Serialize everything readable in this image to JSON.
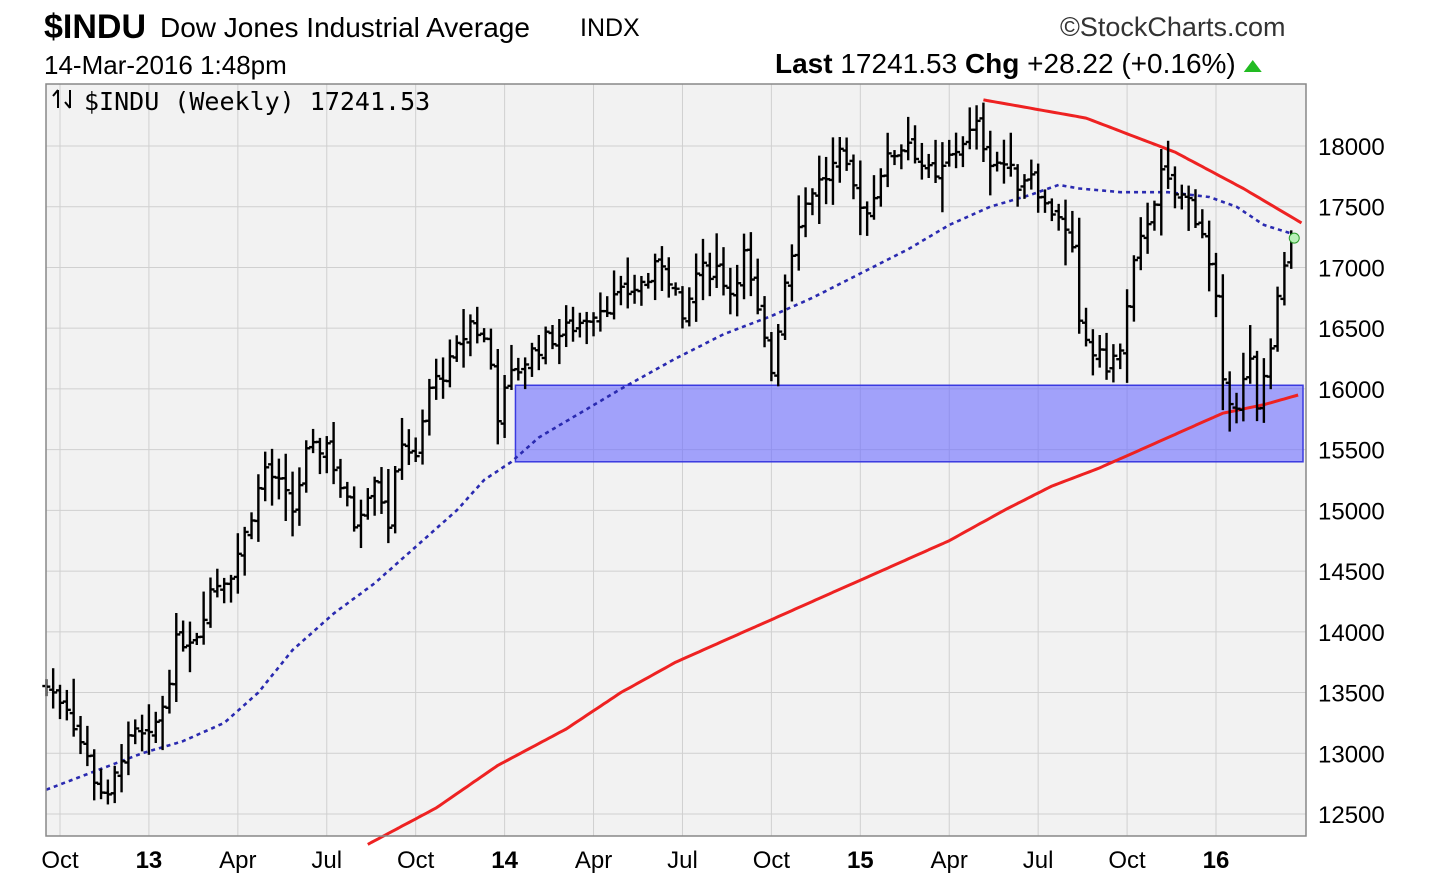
{
  "header": {
    "symbol": "$INDU",
    "name": "Dow Jones Industrial Average",
    "exchange": "INDX",
    "brand": "©StockCharts.com",
    "datetime": "14-Mar-2016 1:48pm",
    "last_label": "Last",
    "last_value": "17241.53",
    "chg_label": "Chg",
    "chg_value": "+28.22 (+0.16%)"
  },
  "panel_title": "$INDU (Weekly) 17241.53",
  "colors": {
    "bars": "#000000",
    "ma_short": "#2a2ab0",
    "ma_long": "#ee2222",
    "trendline": "#ee2222",
    "support_zone": "#6b6bff",
    "up_arrow": "#22bb22",
    "plot_bg": "#f2f2f2",
    "grid": "#d0d0d0"
  },
  "chart_data": {
    "type": "ohlc",
    "title": "$INDU (Weekly) 17241.53",
    "ylim": [
      12300,
      18450
    ],
    "y_ticks": [
      12500,
      13000,
      13500,
      14000,
      14500,
      15000,
      15500,
      16000,
      16500,
      17000,
      17500,
      18000
    ],
    "x_ticks": [
      {
        "label": "Oct",
        "pos": 0,
        "bold": false
      },
      {
        "label": "13",
        "pos": 13,
        "bold": true
      },
      {
        "label": "Apr",
        "pos": 26,
        "bold": false
      },
      {
        "label": "Jul",
        "pos": 39,
        "bold": false
      },
      {
        "label": "Oct",
        "pos": 52,
        "bold": false
      },
      {
        "label": "14",
        "pos": 65,
        "bold": true
      },
      {
        "label": "Apr",
        "pos": 78,
        "bold": false
      },
      {
        "label": "Jul",
        "pos": 91,
        "bold": false
      },
      {
        "label": "Oct",
        "pos": 104,
        "bold": false
      },
      {
        "label": "15",
        "pos": 117,
        "bold": true
      },
      {
        "label": "Apr",
        "pos": 130,
        "bold": false
      },
      {
        "label": "Jul",
        "pos": 143,
        "bold": false
      },
      {
        "label": "Oct",
        "pos": 156,
        "bold": false
      },
      {
        "label": "16",
        "pos": 169,
        "bold": true
      }
    ],
    "x_range": [
      -2,
      180
    ],
    "ohlc_anchors": [
      [
        -2,
        13550
      ],
      [
        1,
        13400
      ],
      [
        5,
        12800
      ],
      [
        7,
        12600
      ],
      [
        9,
        13000
      ],
      [
        11,
        13150
      ],
      [
        13,
        13100
      ],
      [
        15,
        13400
      ],
      [
        17,
        13900
      ],
      [
        20,
        14000
      ],
      [
        22,
        14350
      ],
      [
        25,
        14500
      ],
      [
        27,
        14800
      ],
      [
        30,
        15350
      ],
      [
        32,
        15200
      ],
      [
        34,
        15000
      ],
      [
        36,
        15450
      ],
      [
        39,
        15550
      ],
      [
        41,
        15200
      ],
      [
        43,
        14900
      ],
      [
        46,
        15300
      ],
      [
        48,
        14900
      ],
      [
        50,
        15600
      ],
      [
        52,
        15400
      ],
      [
        54,
        16000
      ],
      [
        57,
        16200
      ],
      [
        60,
        16550
      ],
      [
        62,
        16400
      ],
      [
        63,
        16200
      ],
      [
        64,
        15800
      ],
      [
        66,
        16100
      ],
      [
        69,
        16300
      ],
      [
        71,
        16400
      ],
      [
        73,
        16450
      ],
      [
        76,
        16550
      ],
      [
        78,
        16650
      ],
      [
        80,
        16700
      ],
      [
        83,
        16800
      ],
      [
        86,
        16900
      ],
      [
        88,
        17050
      ],
      [
        90,
        16800
      ],
      [
        91,
        16500
      ],
      [
        93,
        16950
      ],
      [
        96,
        17000
      ],
      [
        98,
        16800
      ],
      [
        100,
        17100
      ],
      [
        102,
        16600
      ],
      [
        104,
        16150
      ],
      [
        106,
        16900
      ],
      [
        108,
        17400
      ],
      [
        110,
        17650
      ],
      [
        112,
        17750
      ],
      [
        114,
        17900
      ],
      [
        116,
        17650
      ],
      [
        118,
        17450
      ],
      [
        120,
        17800
      ],
      [
        122,
        17950
      ],
      [
        124,
        18050
      ],
      [
        126,
        17850
      ],
      [
        128,
        17700
      ],
      [
        130,
        17900
      ],
      [
        132,
        18050
      ],
      [
        134,
        18150
      ],
      [
        136,
        17900
      ],
      [
        138,
        17850
      ],
      [
        140,
        17700
      ],
      [
        142,
        17800
      ],
      [
        144,
        17500
      ],
      [
        146,
        17450
      ],
      [
        148,
        17100
      ],
      [
        149,
        16500
      ],
      [
        151,
        16300
      ],
      [
        153,
        16200
      ],
      [
        155,
        16300
      ],
      [
        157,
        17000
      ],
      [
        159,
        17400
      ],
      [
        161,
        17750
      ],
      [
        163,
        17600
      ],
      [
        165,
        17550
      ],
      [
        167,
        17300
      ],
      [
        169,
        16700
      ],
      [
        170,
        16000
      ],
      [
        172,
        15900
      ],
      [
        174,
        16200
      ],
      [
        175,
        15800
      ],
      [
        177,
        16400
      ],
      [
        179,
        17000
      ],
      [
        180,
        17241.53
      ]
    ],
    "ma_short_anchors": [
      [
        -2,
        12700
      ],
      [
        5,
        12850
      ],
      [
        12,
        13000
      ],
      [
        18,
        13100
      ],
      [
        24,
        13250
      ],
      [
        29,
        13500
      ],
      [
        34,
        13850
      ],
      [
        40,
        14150
      ],
      [
        46,
        14400
      ],
      [
        52,
        14700
      ],
      [
        58,
        15000
      ],
      [
        62,
        15250
      ],
      [
        66,
        15400
      ],
      [
        70,
        15600
      ],
      [
        76,
        15800
      ],
      [
        82,
        16000
      ],
      [
        90,
        16250
      ],
      [
        97,
        16450
      ],
      [
        104,
        16600
      ],
      [
        110,
        16750
      ],
      [
        117,
        16950
      ],
      [
        124,
        17150
      ],
      [
        130,
        17350
      ],
      [
        136,
        17500
      ],
      [
        142,
        17600
      ],
      [
        146,
        17680
      ],
      [
        149,
        17650
      ],
      [
        155,
        17620
      ],
      [
        162,
        17620
      ],
      [
        168,
        17580
      ],
      [
        172,
        17500
      ],
      [
        176,
        17350
      ],
      [
        180,
        17280
      ]
    ],
    "ma_long_anchors": [
      [
        45,
        12250
      ],
      [
        55,
        12550
      ],
      [
        64,
        12900
      ],
      [
        74,
        13200
      ],
      [
        82,
        13500
      ],
      [
        90,
        13750
      ],
      [
        98,
        13950
      ],
      [
        106,
        14150
      ],
      [
        114,
        14350
      ],
      [
        122,
        14550
      ],
      [
        130,
        14750
      ],
      [
        138,
        15000
      ],
      [
        145,
        15200
      ],
      [
        152,
        15350
      ],
      [
        158,
        15500
      ],
      [
        164,
        15650
      ],
      [
        170,
        15800
      ],
      [
        176,
        15870
      ],
      [
        181,
        15950
      ]
    ],
    "trendline_anchors": [
      [
        135,
        18380
      ],
      [
        150,
        18230
      ],
      [
        163,
        17950
      ],
      [
        173,
        17650
      ],
      [
        182,
        17350
      ]
    ],
    "support_zone": {
      "low": 15400,
      "high": 16030,
      "x_start": 66,
      "x_end": 182
    }
  }
}
